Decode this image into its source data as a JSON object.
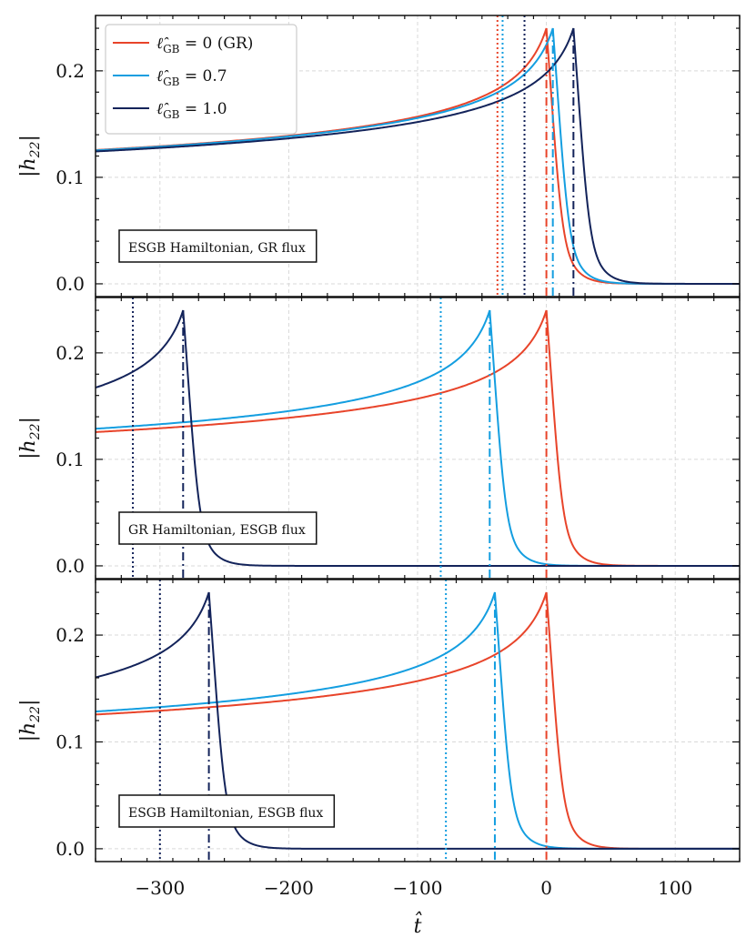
{
  "chart_data": [
    {
      "type": "line",
      "annotation": "ESGB Hamiltonian, GR flux",
      "ylabel": "|h22|",
      "xlabel": "",
      "xlim": [
        -350,
        150
      ],
      "ylim": [
        -0.012,
        0.252
      ],
      "yticks": [
        {
          "v": 0.0,
          "label": "0.0"
        },
        {
          "v": 0.1,
          "label": "0.1"
        },
        {
          "v": 0.2,
          "label": "0.2"
        }
      ],
      "xticks": [
        -300,
        -200,
        -100,
        0,
        100
      ],
      "grid": true,
      "legend": {
        "placement": "top-left",
        "entries": [
          "ℓ̂GB = 0 (GR)",
          "ℓ̂GB = 0.7",
          "ℓ̂GB = 1.0"
        ]
      },
      "series": [
        {
          "name": "ℓ̂GB = 0 (GR)",
          "color": "#e8442a",
          "peak_t": 0,
          "peak_amp": 0.24,
          "t_dotted": -38
        },
        {
          "name": "ℓ̂GB = 0.7",
          "color": "#149ee0",
          "peak_t": 5,
          "peak_amp": 0.24,
          "t_dotted": -34
        },
        {
          "name": "ℓ̂GB = 1.0",
          "color": "#13235a",
          "peak_t": 21,
          "peak_amp": 0.24,
          "t_dotted": -17
        }
      ]
    },
    {
      "type": "line",
      "annotation": "GR Hamiltonian, ESGB flux",
      "ylabel": "|h22|",
      "xlabel": "",
      "xlim": [
        -350,
        150
      ],
      "ylim": [
        -0.012,
        0.252
      ],
      "yticks": [
        {
          "v": 0.0,
          "label": "0.0"
        },
        {
          "v": 0.1,
          "label": "0.1"
        },
        {
          "v": 0.2,
          "label": "0.2"
        }
      ],
      "xticks": [
        -300,
        -200,
        -100,
        0,
        100
      ],
      "grid": true,
      "series": [
        {
          "name": "ℓ̂GB = 0 (GR)",
          "color": "#e8442a",
          "peak_t": 0,
          "peak_amp": 0.24,
          "t_dotted": null
        },
        {
          "name": "ℓ̂GB = 0.7",
          "color": "#149ee0",
          "peak_t": -44,
          "peak_amp": 0.24,
          "t_dotted": -82
        },
        {
          "name": "ℓ̂GB = 1.0",
          "color": "#13235a",
          "peak_t": -282,
          "peak_amp": 0.24,
          "t_dotted": -321
        }
      ]
    },
    {
      "type": "line",
      "annotation": "ESGB Hamiltonian, ESGB flux",
      "ylabel": "|h22|",
      "xlabel": "t̂",
      "xlim": [
        -350,
        150
      ],
      "ylim": [
        -0.012,
        0.252
      ],
      "yticks": [
        {
          "v": 0.0,
          "label": "0.0"
        },
        {
          "v": 0.1,
          "label": "0.1"
        },
        {
          "v": 0.2,
          "label": "0.2"
        }
      ],
      "xticks": [
        -300,
        -200,
        -100,
        0,
        100
      ],
      "xticklabels": [
        "−300",
        "−200",
        "−100",
        "0",
        "100"
      ],
      "grid": true,
      "series": [
        {
          "name": "ℓ̂GB = 0 (GR)",
          "color": "#e8442a",
          "peak_t": 0,
          "peak_amp": 0.24,
          "t_dotted": null
        },
        {
          "name": "ℓ̂GB = 0.7",
          "color": "#149ee0",
          "peak_t": -40,
          "peak_amp": 0.24,
          "t_dotted": -78
        },
        {
          "name": "ℓ̂GB = 1.0",
          "color": "#13235a",
          "peak_t": -262,
          "peak_amp": 0.24,
          "t_dotted": -300
        }
      ]
    }
  ]
}
